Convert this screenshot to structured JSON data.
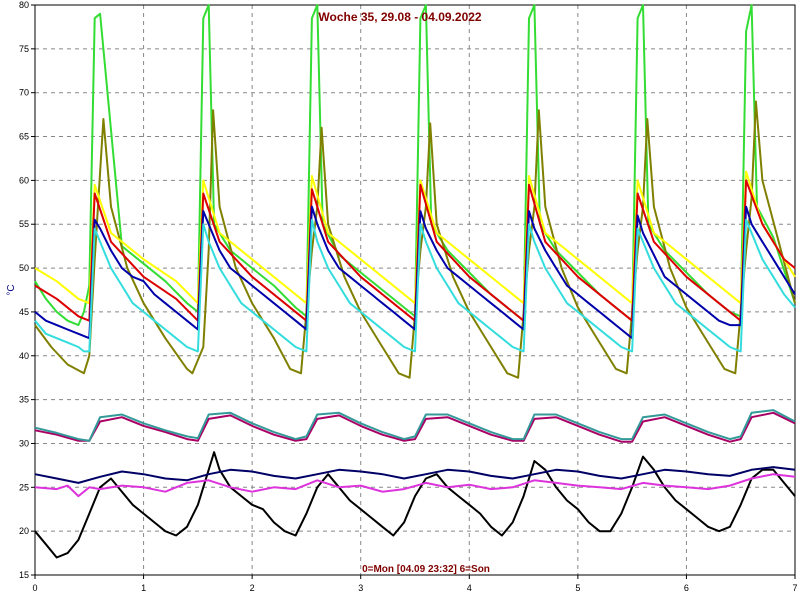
{
  "chart_data": {
    "type": "line",
    "title": "Woche 35, 29.08 - 04.09.2022",
    "xlabel": "0=Mon [04.09 23:32] 6=Son",
    "ylabel": "°C",
    "xlim": [
      0,
      7
    ],
    "ylim": [
      15,
      80
    ],
    "x_ticks": [
      "0",
      "1",
      "2",
      "3",
      "4",
      "5",
      "6",
      "7"
    ],
    "y_ticks": [
      "15",
      "20",
      "25",
      "30",
      "35",
      "40",
      "45",
      "50",
      "55",
      "60",
      "65",
      "70",
      "75",
      "80"
    ],
    "grid": true,
    "colors": {
      "title": "#800000",
      "xlabel": "#800000",
      "ylabel": "#000080",
      "grid": "#888888",
      "axis": "#000000"
    },
    "series": [
      {
        "color": "#33dd33",
        "x": [
          0,
          0.1,
          0.2,
          0.3,
          0.4,
          0.45,
          0.5,
          0.55,
          0.6,
          0.8,
          1.0,
          1.2,
          1.4,
          1.5,
          1.55,
          1.6,
          1.65,
          1.8,
          2.0,
          2.2,
          2.4,
          2.5,
          2.55,
          2.6,
          2.65,
          2.8,
          3.0,
          3.2,
          3.4,
          3.5,
          3.55,
          3.6,
          3.65,
          3.8,
          4.0,
          4.2,
          4.4,
          4.5,
          4.55,
          4.6,
          4.65,
          4.8,
          5.0,
          5.2,
          5.4,
          5.5,
          5.55,
          5.6,
          5.65,
          5.8,
          6.0,
          6.2,
          6.4,
          6.5,
          6.55,
          6.6,
          6.65,
          6.8,
          7.0
        ],
        "y": [
          48.5,
          46.5,
          45,
          44,
          43.5,
          45,
          48,
          78.5,
          79,
          52.5,
          50.5,
          48.5,
          46,
          45,
          78.5,
          80,
          55,
          52,
          50,
          48,
          45.5,
          44.5,
          78.5,
          80,
          55,
          51.5,
          49.5,
          47.5,
          45.5,
          44.5,
          78.5,
          80,
          55,
          52,
          49.5,
          47,
          45,
          44,
          78.5,
          80,
          55,
          52,
          49.5,
          47,
          45,
          44,
          78.5,
          80,
          55,
          52,
          49.5,
          47,
          45,
          44.5,
          77,
          80,
          57,
          53.5,
          46
        ]
      },
      {
        "color": "#808000",
        "x": [
          0,
          0.15,
          0.3,
          0.45,
          0.5,
          0.55,
          0.63,
          0.7,
          0.85,
          1.0,
          1.2,
          1.4,
          1.45,
          1.55,
          1.6,
          1.64,
          1.7,
          1.85,
          2.0,
          2.2,
          2.35,
          2.45,
          2.55,
          2.6,
          2.64,
          2.7,
          2.85,
          3.0,
          3.2,
          3.35,
          3.45,
          3.55,
          3.6,
          3.64,
          3.7,
          3.85,
          4.0,
          4.2,
          4.35,
          4.45,
          4.55,
          4.6,
          4.64,
          4.7,
          4.85,
          5.0,
          5.2,
          5.35,
          5.45,
          5.55,
          5.6,
          5.64,
          5.7,
          5.85,
          6.0,
          6.2,
          6.35,
          6.45,
          6.55,
          6.6,
          6.64,
          6.7,
          6.85,
          7.0
        ],
        "y": [
          43.5,
          41,
          39,
          38,
          40,
          51,
          67,
          57,
          50,
          46,
          42,
          38.5,
          38,
          41,
          52,
          68,
          57,
          50,
          46,
          42,
          38.5,
          38,
          52,
          57,
          66,
          55,
          49,
          45,
          41,
          38,
          37.5,
          52,
          57,
          66.5,
          55,
          49,
          45,
          41,
          38,
          37.5,
          52,
          57,
          68,
          57,
          50,
          45.5,
          41.5,
          38.5,
          38,
          52,
          57,
          67,
          57,
          50,
          45.5,
          41.5,
          38.5,
          38,
          52,
          58,
          69,
          60,
          53,
          46
        ]
      },
      {
        "color": "#ffff00",
        "x": [
          0,
          0.2,
          0.4,
          0.5,
          0.55,
          0.7,
          1.0,
          1.3,
          1.5,
          1.55,
          1.7,
          2.0,
          2.3,
          2.5,
          2.55,
          2.7,
          3.0,
          3.3,
          3.5,
          3.55,
          3.7,
          4.0,
          4.3,
          4.5,
          4.55,
          4.7,
          5.0,
          5.3,
          5.5,
          5.55,
          5.7,
          6.0,
          6.3,
          6.5,
          6.55,
          6.7,
          7.0
        ],
        "y": [
          50,
          48.5,
          46.5,
          46,
          59.5,
          54,
          51,
          48.5,
          46,
          60,
          54,
          51,
          48,
          46,
          60.5,
          54,
          51,
          48,
          46,
          60,
          54,
          51,
          48,
          46,
          60.5,
          54,
          51,
          48,
          46,
          60,
          54,
          51,
          48,
          46,
          61,
          55,
          49
        ]
      },
      {
        "color": "#dd0000",
        "x": [
          0,
          0.2,
          0.4,
          0.5,
          0.55,
          0.7,
          1.0,
          1.3,
          1.5,
          1.55,
          1.7,
          2.0,
          2.3,
          2.5,
          2.55,
          2.7,
          3.0,
          3.3,
          3.5,
          3.55,
          3.7,
          4.0,
          4.3,
          4.5,
          4.55,
          4.7,
          5.0,
          5.3,
          5.5,
          5.55,
          5.7,
          6.0,
          6.3,
          6.5,
          6.55,
          6.7,
          6.9,
          7.0
        ],
        "y": [
          48,
          46.5,
          44.5,
          44,
          58.5,
          53,
          49,
          46.5,
          44,
          58.5,
          53,
          49,
          46,
          44,
          59,
          53,
          49,
          46,
          44,
          59.5,
          53,
          49,
          46,
          44,
          59.5,
          53,
          49,
          46,
          44,
          58.5,
          53,
          49,
          46,
          44,
          60,
          55,
          51,
          50
        ]
      },
      {
        "color": "#0000aa",
        "x": [
          0,
          0.1,
          0.2,
          0.3,
          0.4,
          0.5,
          0.55,
          0.6,
          0.7,
          0.8,
          0.9,
          1.0,
          1.1,
          1.2,
          1.3,
          1.4,
          1.5,
          1.55,
          1.6,
          1.7,
          1.8,
          1.9,
          2.0,
          2.1,
          2.2,
          2.3,
          2.4,
          2.5,
          2.55,
          2.6,
          2.7,
          2.8,
          2.9,
          3.0,
          3.1,
          3.2,
          3.3,
          3.4,
          3.5,
          3.55,
          3.6,
          3.7,
          3.8,
          3.9,
          4.0,
          4.1,
          4.2,
          4.3,
          4.4,
          4.5,
          4.55,
          4.6,
          4.7,
          4.8,
          4.9,
          5.0,
          5.1,
          5.2,
          5.3,
          5.4,
          5.5,
          5.55,
          5.6,
          5.7,
          5.8,
          5.9,
          6.0,
          6.1,
          6.2,
          6.3,
          6.4,
          6.5,
          6.55,
          6.6,
          6.7,
          6.8,
          6.9,
          7.0
        ],
        "y": [
          45,
          44,
          43.5,
          43,
          42.5,
          42,
          55.5,
          54.5,
          52,
          50,
          49,
          48.5,
          47,
          46,
          45,
          44,
          43,
          56.5,
          55,
          52,
          50,
          49,
          48,
          47,
          46,
          45,
          44,
          43,
          57,
          55,
          52,
          50,
          49,
          48,
          47,
          46,
          45,
          44,
          43,
          56.5,
          54.5,
          52,
          50,
          49,
          48,
          47,
          46,
          45,
          44,
          43,
          56.5,
          54.5,
          52,
          50,
          48,
          47,
          46,
          45,
          44,
          43,
          42,
          56,
          54,
          51.5,
          49,
          48,
          47,
          46,
          45,
          44,
          43.5,
          43.5,
          57,
          55,
          53,
          51,
          49,
          47
        ]
      },
      {
        "color": "#33dddd",
        "x": [
          0,
          0.1,
          0.2,
          0.3,
          0.4,
          0.45,
          0.5,
          0.55,
          0.6,
          0.7,
          0.8,
          0.9,
          1.0,
          1.1,
          1.2,
          1.3,
          1.4,
          1.5,
          1.55,
          1.6,
          1.7,
          1.8,
          1.9,
          2.0,
          2.1,
          2.2,
          2.3,
          2.4,
          2.5,
          2.55,
          2.6,
          2.7,
          2.8,
          2.9,
          3.0,
          3.1,
          3.2,
          3.3,
          3.4,
          3.5,
          3.55,
          3.6,
          3.7,
          3.8,
          3.9,
          4.0,
          4.1,
          4.2,
          4.3,
          4.4,
          4.5,
          4.55,
          4.6,
          4.7,
          4.8,
          4.9,
          5.0,
          5.1,
          5.2,
          5.3,
          5.4,
          5.5,
          5.55,
          5.6,
          5.7,
          5.8,
          5.9,
          6.0,
          6.1,
          6.2,
          6.3,
          6.4,
          6.5,
          6.55,
          6.6,
          6.7,
          6.8,
          6.9,
          7.0
        ],
        "y": [
          44,
          42.5,
          42,
          41.5,
          41,
          40.5,
          40.5,
          54.5,
          53,
          50,
          48,
          46,
          45,
          44,
          43,
          42,
          41,
          40.5,
          55,
          53,
          50,
          48,
          46,
          45,
          44,
          43,
          42,
          41,
          40.5,
          55.5,
          53,
          50,
          48,
          46,
          45,
          44,
          43,
          42,
          41,
          40.5,
          55,
          53,
          50,
          48,
          46,
          45,
          44,
          43,
          42,
          41,
          40.5,
          55,
          53,
          50,
          48,
          46,
          45,
          44,
          43,
          42,
          41,
          40.5,
          54.5,
          53,
          50,
          48,
          46,
          45,
          44,
          43,
          42,
          41,
          40.5,
          55.5,
          54,
          51,
          49,
          47,
          45.5
        ]
      },
      {
        "color": "#aa0066",
        "x": [
          0,
          0.2,
          0.4,
          0.5,
          0.6,
          0.8,
          1.0,
          1.2,
          1.4,
          1.5,
          1.6,
          1.8,
          2.0,
          2.2,
          2.4,
          2.5,
          2.6,
          2.8,
          3.0,
          3.2,
          3.4,
          3.5,
          3.6,
          3.8,
          4.0,
          4.2,
          4.4,
          4.5,
          4.6,
          4.8,
          5.0,
          5.2,
          5.4,
          5.5,
          5.6,
          5.8,
          6.0,
          6.2,
          6.4,
          6.5,
          6.6,
          6.8,
          7.0
        ],
        "y": [
          31.5,
          31,
          30.3,
          30.3,
          32.5,
          33,
          32,
          31.3,
          30.5,
          30.3,
          32.8,
          33.2,
          32,
          31,
          30.3,
          30.5,
          32.8,
          33.2,
          32,
          31,
          30.3,
          30.5,
          32.8,
          33,
          32,
          31,
          30.3,
          30.3,
          32.8,
          33,
          32,
          31,
          30.2,
          30.2,
          32.5,
          33,
          32,
          31,
          30.2,
          30.5,
          33,
          33.5,
          32.3
        ]
      },
      {
        "color": "#339999",
        "x": [
          0,
          0.2,
          0.4,
          0.5,
          0.6,
          0.8,
          1.0,
          1.2,
          1.4,
          1.5,
          1.6,
          1.8,
          2.0,
          2.2,
          2.4,
          2.5,
          2.6,
          2.8,
          3.0,
          3.2,
          3.4,
          3.5,
          3.6,
          3.8,
          4.0,
          4.2,
          4.4,
          4.5,
          4.6,
          4.8,
          5.0,
          5.2,
          5.4,
          5.5,
          5.6,
          5.8,
          6.0,
          6.2,
          6.4,
          6.5,
          6.6,
          6.8,
          7.0
        ],
        "y": [
          31.8,
          31.2,
          30.5,
          30.3,
          33,
          33.3,
          32.3,
          31.5,
          30.8,
          30.6,
          33.3,
          33.5,
          32.3,
          31.3,
          30.5,
          30.8,
          33.3,
          33.5,
          32.3,
          31.3,
          30.5,
          30.8,
          33.3,
          33.3,
          32.3,
          31.3,
          30.5,
          30.5,
          33.3,
          33.3,
          32.3,
          31.3,
          30.5,
          30.5,
          33,
          33.3,
          32.3,
          31.3,
          30.5,
          30.8,
          33.5,
          33.8,
          32.5
        ]
      },
      {
        "color": "#000000",
        "x": [
          0,
          0.1,
          0.2,
          0.3,
          0.4,
          0.5,
          0.6,
          0.7,
          0.8,
          0.9,
          1.0,
          1.1,
          1.2,
          1.3,
          1.4,
          1.5,
          1.6,
          1.65,
          1.7,
          1.8,
          1.9,
          2.0,
          2.1,
          2.2,
          2.3,
          2.4,
          2.5,
          2.6,
          2.7,
          2.8,
          2.9,
          3.0,
          3.1,
          3.2,
          3.3,
          3.4,
          3.5,
          3.6,
          3.7,
          3.8,
          3.9,
          4.0,
          4.1,
          4.2,
          4.3,
          4.4,
          4.5,
          4.6,
          4.7,
          4.8,
          4.9,
          5.0,
          5.1,
          5.2,
          5.3,
          5.4,
          5.5,
          5.6,
          5.7,
          5.8,
          5.9,
          6.0,
          6.1,
          6.2,
          6.3,
          6.4,
          6.5,
          6.6,
          6.7,
          6.8,
          6.9,
          7.0
        ],
        "y": [
          20,
          18.5,
          17,
          17.5,
          19,
          22,
          25,
          26,
          24.5,
          23,
          22,
          21,
          20,
          19.5,
          20.5,
          23,
          27,
          29,
          27,
          25,
          24,
          23,
          22.5,
          21,
          20,
          19.5,
          22,
          25,
          26.5,
          25,
          23.5,
          22.5,
          21.5,
          20.5,
          19.5,
          21,
          24,
          26,
          26.5,
          25,
          24,
          23,
          22,
          20.5,
          19.5,
          21,
          24,
          28,
          27,
          25,
          23.5,
          22.5,
          21,
          20,
          20,
          22,
          25,
          28.5,
          27,
          25,
          23.5,
          22.5,
          21.5,
          20.5,
          20,
          20.5,
          23,
          26,
          27,
          27,
          25.5,
          24
        ]
      },
      {
        "color": "#000066",
        "x": [
          0,
          0.2,
          0.4,
          0.6,
          0.8,
          1.0,
          1.2,
          1.4,
          1.6,
          1.8,
          2.0,
          2.2,
          2.4,
          2.6,
          2.8,
          3.0,
          3.2,
          3.4,
          3.6,
          3.8,
          4.0,
          4.2,
          4.4,
          4.6,
          4.8,
          5.0,
          5.2,
          5.4,
          5.6,
          5.8,
          6.0,
          6.2,
          6.4,
          6.6,
          6.8,
          7.0
        ],
        "y": [
          26.5,
          26,
          25.5,
          26.2,
          26.8,
          26.5,
          26,
          25.8,
          26.5,
          27,
          26.8,
          26.3,
          26,
          26.5,
          27,
          26.8,
          26.5,
          26,
          26.5,
          27,
          26.8,
          26.3,
          26,
          26.5,
          27,
          26.8,
          26.3,
          26,
          26.5,
          27,
          26.8,
          26.5,
          26.3,
          27,
          27.3,
          27
        ]
      },
      {
        "color": "#dd33dd",
        "x": [
          0,
          0.2,
          0.3,
          0.4,
          0.5,
          0.6,
          0.8,
          1.0,
          1.2,
          1.4,
          1.6,
          1.8,
          2.0,
          2.2,
          2.4,
          2.6,
          2.8,
          3.0,
          3.2,
          3.4,
          3.6,
          3.8,
          4.0,
          4.2,
          4.4,
          4.6,
          4.8,
          5.0,
          5.2,
          5.4,
          5.6,
          5.8,
          6.0,
          6.2,
          6.4,
          6.6,
          6.8,
          7.0
        ],
        "y": [
          25,
          24.8,
          25.2,
          24,
          25,
          24.8,
          25.2,
          25,
          24.5,
          25.5,
          25.8,
          25,
          24.5,
          25,
          24.8,
          25.8,
          25,
          25.2,
          24.5,
          24.8,
          25.5,
          25,
          25.3,
          24.8,
          25,
          25.8,
          25.5,
          25.2,
          25,
          24.8,
          25.5,
          25.2,
          25,
          24.8,
          25.2,
          26,
          26.5,
          26.2
        ]
      }
    ]
  }
}
